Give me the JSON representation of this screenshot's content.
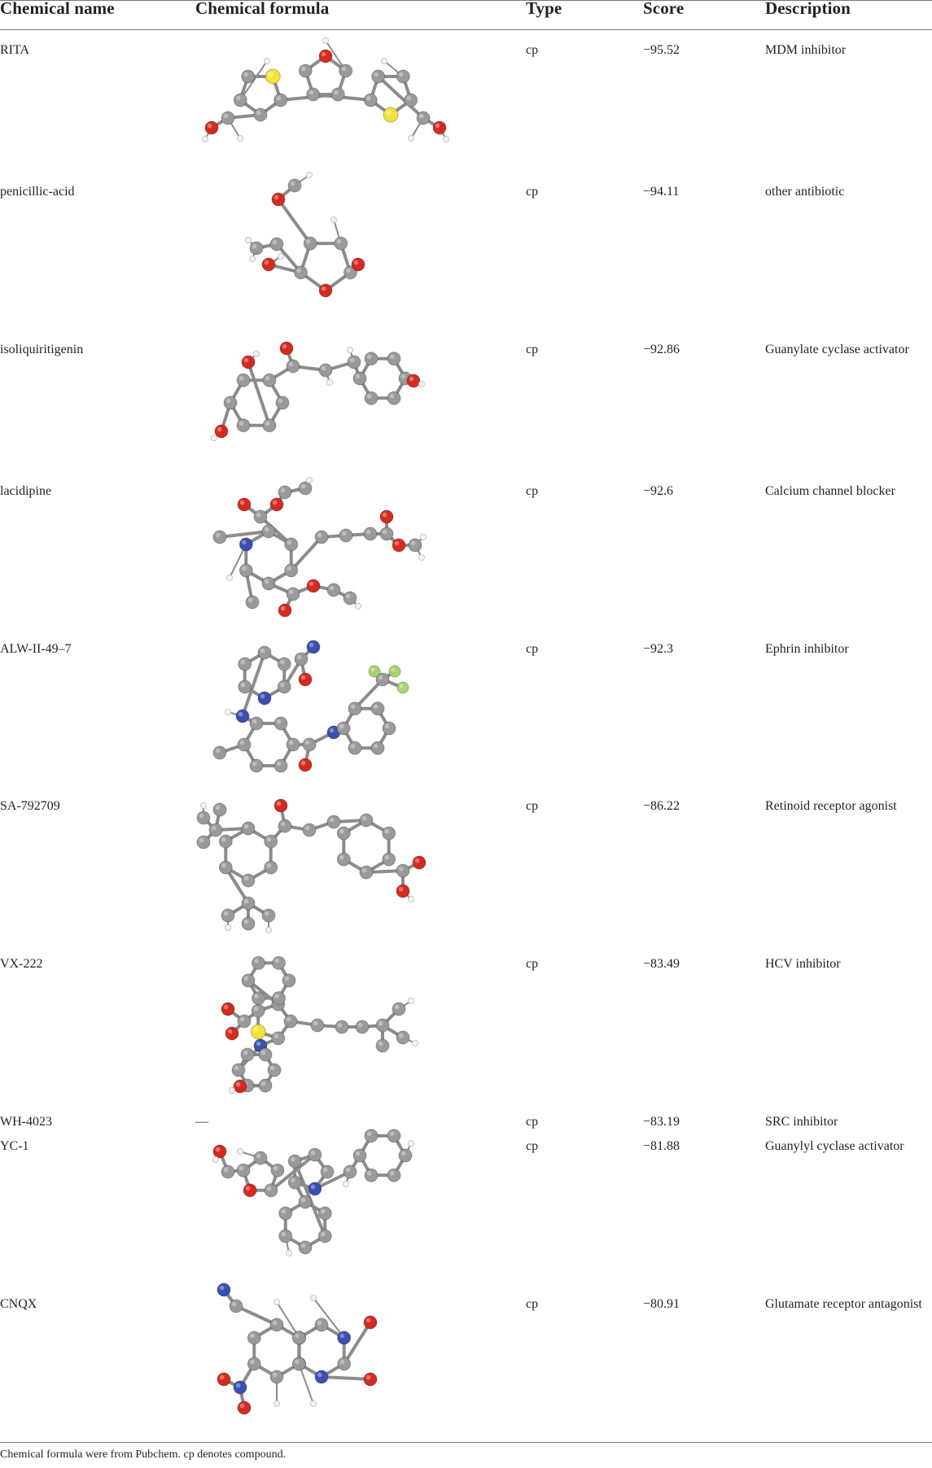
{
  "table": {
    "headers": {
      "name": "Chemical name",
      "formula": "Chemical formula",
      "type": "Type",
      "score": "Score",
      "description": "Description"
    },
    "rows": [
      {
        "name": "RITA",
        "type": "cp",
        "score": "−95.52",
        "description": "MDM inhibitor",
        "structure": "rita-molecule"
      },
      {
        "name": "penicillic-acid",
        "type": "cp",
        "score": "−94.11",
        "description": "other antibiotic",
        "structure": "penicillic-acid-molecule"
      },
      {
        "name": "isoliquiritigenin",
        "type": "cp",
        "score": "−92.86",
        "description": "Guanylate cyclase activator",
        "structure": "isoliquiritigenin-molecule"
      },
      {
        "name": "lacidipine",
        "type": "cp",
        "score": "−92.6",
        "description": "Calcium channel blocker",
        "structure": "lacidipine-molecule"
      },
      {
        "name": "ALW-II-49–7",
        "type": "cp",
        "score": "−92.3",
        "description": "Ephrin inhibitor",
        "structure": "alw-ii-49-7-molecule"
      },
      {
        "name": "SA-792709",
        "type": "cp",
        "score": "−86.22",
        "description": "Retinoid receptor agonist",
        "structure": "sa-792709-molecule"
      },
      {
        "name": "VX-222",
        "type": "cp",
        "score": "−83.49",
        "description": "HCV inhibitor",
        "structure": "vx-222-molecule"
      },
      {
        "name": "WH-4023",
        "formula_text": "—",
        "type": "cp",
        "score": "−83.19",
        "description": "SRC inhibitor"
      },
      {
        "name": "YC-1",
        "type": "cp",
        "score": "−81.88",
        "description": "Guanylyl cyclase activator",
        "structure": "yc-1-molecule"
      },
      {
        "name": "CNQX",
        "type": "cp",
        "score": "−80.91",
        "description": "Glutamate receptor antagonist",
        "structure": "cnqx-molecule"
      }
    ]
  },
  "footnote": "Chemical formula were from Pubchem. cp denotes compound.",
  "colors": {
    "carbon": "#9a9a9a",
    "hydrogen": "#f2f2f2",
    "oxygen": "#d42a20",
    "sulfur": "#f2e23a",
    "nitrogen": "#3a4fb0",
    "fluorine": "#a8d46a",
    "bond": "#8c8c8c",
    "text": "#231f20",
    "rule": "#777777"
  }
}
